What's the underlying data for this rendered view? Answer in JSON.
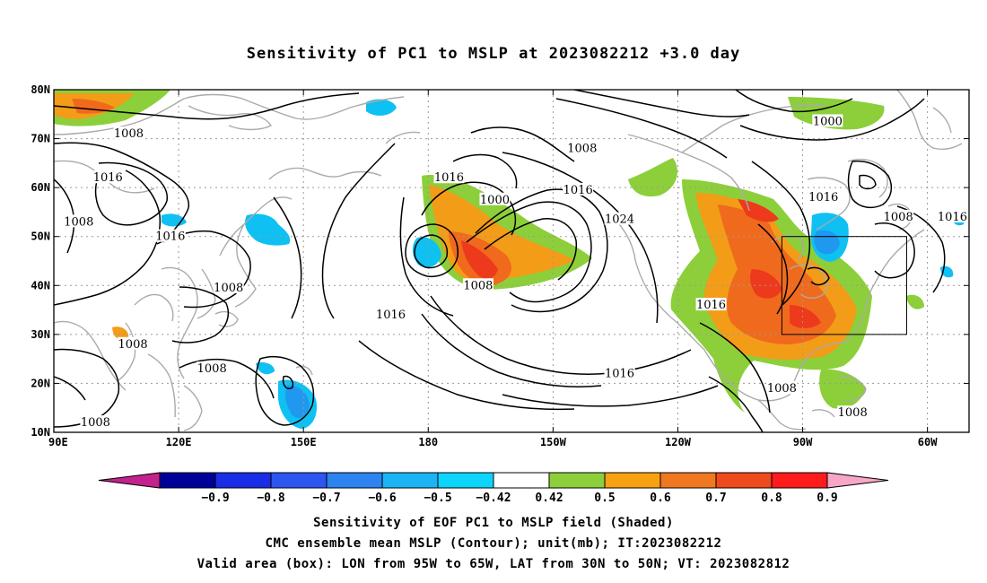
{
  "title": "Sensitivity of PC1 to MSLP at 2023082212 +3.0 day",
  "captions": [
    "Sensitivity of EOF PC1 to MSLP field (Shaded)",
    "CMC ensemble mean MSLP (Contour); unit(mb); IT:2023082212",
    "Valid area (box): LON from 95W to 65W, LAT from 30N to 50N; VT: 2023082812"
  ],
  "map": {
    "lon_range": [
      90,
      310
    ],
    "lat_range": [
      10,
      80
    ],
    "lon_ticks": [
      {
        "lon": 90,
        "label": "90E"
      },
      {
        "lon": 120,
        "label": "120E"
      },
      {
        "lon": 150,
        "label": "150E"
      },
      {
        "lon": 180,
        "label": "180"
      },
      {
        "lon": 210,
        "label": "150W"
      },
      {
        "lon": 240,
        "label": "120W"
      },
      {
        "lon": 270,
        "label": "90W"
      },
      {
        "lon": 300,
        "label": "60W"
      }
    ],
    "lat_ticks": [
      {
        "lat": 80,
        "label": "80N"
      },
      {
        "lat": 70,
        "label": "70N"
      },
      {
        "lat": 60,
        "label": "60N"
      },
      {
        "lat": 50,
        "label": "50N"
      },
      {
        "lat": 40,
        "label": "40N"
      },
      {
        "lat": 30,
        "label": "30N"
      },
      {
        "lat": 20,
        "label": "20N"
      },
      {
        "lat": 10,
        "label": "10N"
      }
    ],
    "valid_box": {
      "lon": [
        265,
        295
      ],
      "lat": [
        30,
        50
      ]
    },
    "colors": {
      "coast": "#aaaaaa",
      "grid": "#9a9a9a",
      "contour": "#000000",
      "pos1": "#8ccf3a",
      "pos2": "#f39c18",
      "pos3": "#f06a1e",
      "pos4": "#ee3a1c",
      "neg1": "#0fc0f2",
      "neg2": "#2098f0"
    },
    "contour_labels": [
      {
        "text": "1008",
        "lon": 108,
        "lat": 71
      },
      {
        "text": "1016",
        "lon": 103,
        "lat": 62
      },
      {
        "text": "1008",
        "lon": 96,
        "lat": 53
      },
      {
        "text": "1016",
        "lon": 118,
        "lat": 50
      },
      {
        "text": "1008",
        "lon": 132,
        "lat": 39.5
      },
      {
        "text": "1008",
        "lon": 109,
        "lat": 28
      },
      {
        "text": "1008",
        "lon": 128,
        "lat": 23
      },
      {
        "text": "1008",
        "lon": 100,
        "lat": 12
      },
      {
        "text": "1016",
        "lon": 171,
        "lat": 34
      },
      {
        "text": "1016",
        "lon": 185,
        "lat": 62
      },
      {
        "text": "1000",
        "lon": 196,
        "lat": 57.5
      },
      {
        "text": "1008",
        "lon": 217,
        "lat": 68
      },
      {
        "text": "1016",
        "lon": 216,
        "lat": 59.5
      },
      {
        "text": "1024",
        "lon": 226,
        "lat": 53.5
      },
      {
        "text": "1008",
        "lon": 192,
        "lat": 40
      },
      {
        "text": "1016",
        "lon": 248,
        "lat": 36
      },
      {
        "text": "1016",
        "lon": 226,
        "lat": 22
      },
      {
        "text": "1016",
        "lon": 275,
        "lat": 58
      },
      {
        "text": "1000",
        "lon": 276,
        "lat": 73.5
      },
      {
        "text": "1008",
        "lon": 293,
        "lat": 54
      },
      {
        "text": "1016",
        "lon": 306,
        "lat": 54
      },
      {
        "text": "1008",
        "lon": 265,
        "lat": 19
      },
      {
        "text": "1008",
        "lon": 282,
        "lat": 14
      }
    ],
    "colorbar": {
      "labels": [
        "−0.9",
        "−0.8",
        "−0.7",
        "−0.6",
        "−0.5",
        "−0.42",
        "0.42",
        "0.5",
        "0.6",
        "0.7",
        "0.8",
        "0.9"
      ],
      "colors": [
        "#000099",
        "#1a2de6",
        "#2d55f0",
        "#2d83f0",
        "#1ab4f5",
        "#0cd4fc",
        "#ffffff",
        "#8ccf3a",
        "#f7a010",
        "#f07820",
        "#ef4a1c",
        "#ff1b1b"
      ],
      "low_end": "#c3228c",
      "high_end": "#f7a6c8"
    }
  }
}
